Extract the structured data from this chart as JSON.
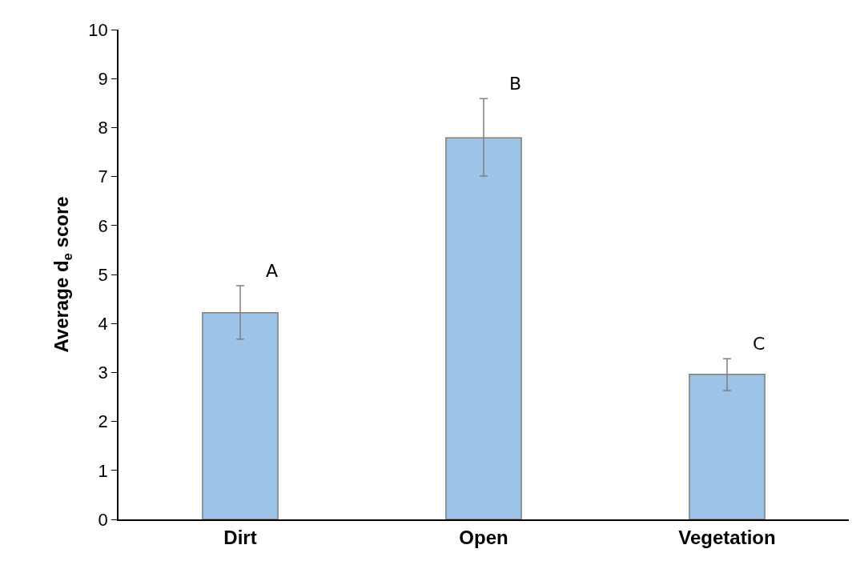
{
  "chart_data": {
    "type": "bar",
    "ylabel": "Average d$_{e}$ score",
    "categories": [
      "Dirt",
      "Open",
      "Vegetation"
    ],
    "values": [
      4.22,
      7.79,
      2.96
    ],
    "errors": [
      [
        3.68,
        4.77
      ],
      [
        7.01,
        8.59
      ],
      [
        2.63,
        3.28
      ]
    ],
    "color": "#9dc3e6",
    "ylim": [
      0,
      10
    ],
    "yticks": [
      0,
      1,
      2,
      3,
      4,
      5,
      6,
      7,
      8,
      9,
      10
    ],
    "grid": false,
    "annotations": [
      {
        "text": "A",
        "x": "Dirt",
        "y": 4.77
      },
      {
        "text": "B",
        "x": "Open",
        "y": 8.59
      },
      {
        "text": "C",
        "x": "Vegetation",
        "y": 3.28
      }
    ]
  }
}
